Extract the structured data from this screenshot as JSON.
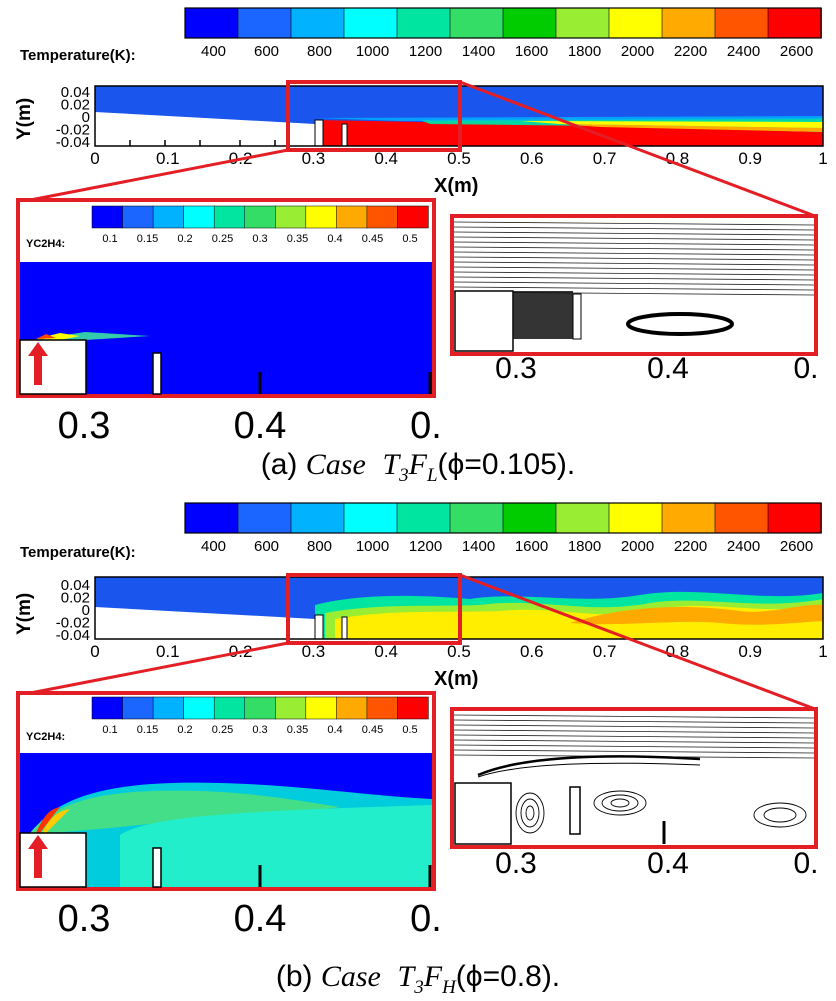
{
  "colormap": [
    "#0000ff",
    "#1a66ff",
    "#00b2ff",
    "#00ffff",
    "#00e6a0",
    "#33dd66",
    "#00cc00",
    "#99ee33",
    "#ffff00",
    "#ffaa00",
    "#ff5500",
    "#ff0000"
  ],
  "temperature_legend": {
    "label": "Temperature(K):",
    "ticks": [
      "400",
      "600",
      "800",
      "1000",
      "1200",
      "1400",
      "1600",
      "1800",
      "2000",
      "2200",
      "2400",
      "2600"
    ]
  },
  "yc2h4_legend": {
    "label": "YC2H4:",
    "ticks": [
      "0.1",
      "0.15",
      "0.2",
      "0.25",
      "0.3",
      "0.35",
      "0.4",
      "0.45",
      "0.5"
    ]
  },
  "main_axes": {
    "ylabel": "Y(m)",
    "xlabel": "X(m)",
    "yticks": [
      "0.04",
      "0.02",
      "0",
      "-0.02",
      "-0.04"
    ],
    "xticks": [
      "0",
      "0.1",
      "0.2",
      "0.3",
      "0.4",
      "0.5",
      "0.6",
      "0.7",
      "0.8",
      "0.9",
      "1"
    ]
  },
  "zoom_xticks": [
    "0.3",
    "0.4",
    "0."
  ],
  "panels": [
    {
      "id": "a",
      "caption_prefix": "(a)",
      "caption_case": "Case",
      "caption_T": "T",
      "caption_T_sub": "3",
      "caption_F": "F",
      "caption_F_sub": "L",
      "caption_phi": "(ϕ=0.105)."
    },
    {
      "id": "b",
      "caption_prefix": "(b)",
      "caption_case": "Case",
      "caption_T": "T",
      "caption_T_sub": "3",
      "caption_F": "F",
      "caption_F_sub": "H",
      "caption_phi": "(ϕ=0.8)."
    }
  ]
}
